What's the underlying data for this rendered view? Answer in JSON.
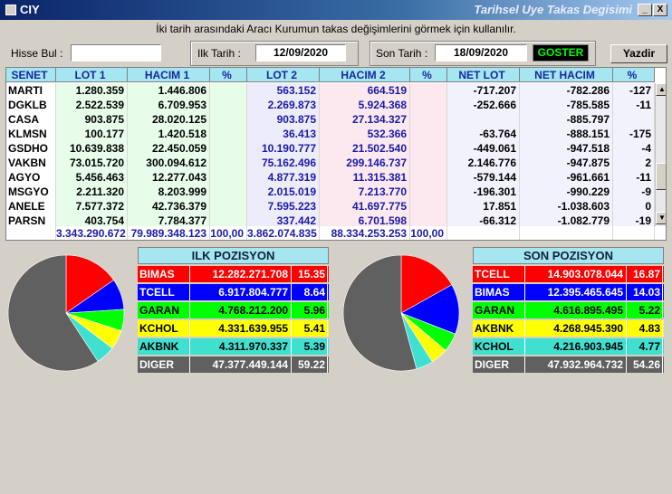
{
  "window": {
    "title_left": "CIY",
    "title_right": "Tarihsel Uye Takas Degisimi",
    "min_label": "_",
    "close_label": "X"
  },
  "instructions": "İki tarih arasındaki Aracı Kurumun takas değişimlerini görmek için kullanılır.",
  "filters": {
    "hisse_label": "Hisse Bul :",
    "hisse_value": "",
    "ilk_label": "Ilk Tarih :",
    "ilk_value": "12/09/2020",
    "son_label": "Son Tarih :",
    "son_value": "18/09/2020",
    "goster_label": "GOSTER",
    "yazdir_label": "Yazdir"
  },
  "table": {
    "headers": [
      "SENET",
      "LOT 1",
      "HACIM 1",
      "%",
      "LOT 2",
      "HACIM 2",
      "%",
      "NET LOT",
      "NET HACIM",
      "%"
    ],
    "rows": [
      [
        "MARTI",
        "1.280.359",
        "1.446.806",
        "",
        "563.152",
        "664.519",
        "",
        "-717.207",
        "-782.286",
        "-127"
      ],
      [
        "DGKLB",
        "2.522.539",
        "6.709.953",
        "",
        "2.269.873",
        "5.924.368",
        "",
        "-252.666",
        "-785.585",
        "-11"
      ],
      [
        "CASA",
        "903.875",
        "28.020.125",
        "",
        "903.875",
        "27.134.327",
        "",
        "",
        "-885.797",
        ""
      ],
      [
        "KLMSN",
        "100.177",
        "1.420.518",
        "",
        "36.413",
        "532.366",
        "",
        "-63.764",
        "-888.151",
        "-175"
      ],
      [
        "GSDHO",
        "10.639.838",
        "22.450.059",
        "",
        "10.190.777",
        "21.502.540",
        "",
        "-449.061",
        "-947.518",
        "-4"
      ],
      [
        "VAKBN",
        "73.015.720",
        "300.094.612",
        "",
        "75.162.496",
        "299.146.737",
        "",
        "2.146.776",
        "-947.875",
        "2"
      ],
      [
        "AGYO",
        "5.456.463",
        "12.277.043",
        "",
        "4.877.319",
        "11.315.381",
        "",
        "-579.144",
        "-961.661",
        "-11"
      ],
      [
        "MSGYO",
        "2.211.320",
        "8.203.999",
        "",
        "2.015.019",
        "7.213.770",
        "",
        "-196.301",
        "-990.229",
        "-9"
      ],
      [
        "ANELE",
        "7.577.372",
        "42.736.379",
        "",
        "7.595.223",
        "41.697.775",
        "",
        "17.851",
        "-1.038.603",
        "0"
      ],
      [
        "PARSN",
        "403.754",
        "7.784.377",
        "",
        "337.442",
        "6.701.598",
        "",
        "-66.312",
        "-1.082.779",
        "-19"
      ]
    ],
    "totals": [
      "",
      "3.343.290.672",
      "79.989.348.123",
      "100,00",
      "3.862.074.835",
      "88.334.253.253",
      "100,00",
      "",
      "",
      ""
    ]
  },
  "ilk_pozisyon": {
    "title": "ILK POZISYON",
    "items": [
      {
        "name": "BIMAS",
        "value": "12.282.271.708",
        "pct": "15.35",
        "color": "#ff0000",
        "text": "#ffffff",
        "share": 15.35
      },
      {
        "name": "TCELL",
        "value": "6.917.804.777",
        "pct": "8.64",
        "color": "#0000ff",
        "text": "#ffffff",
        "share": 8.64
      },
      {
        "name": "GARAN",
        "value": "4.768.212.200",
        "pct": "5.96",
        "color": "#00ff00",
        "text": "#000000",
        "share": 5.96
      },
      {
        "name": "KCHOL",
        "value": "4.331.639.955",
        "pct": "5.41",
        "color": "#ffff00",
        "text": "#000000",
        "share": 5.41
      },
      {
        "name": "AKBNK",
        "value": "4.311.970.337",
        "pct": "5.39",
        "color": "#40e0d0",
        "text": "#000000",
        "share": 5.39
      },
      {
        "name": "DIGER",
        "value": "47.377.449.144",
        "pct": "59.22",
        "color": "#606060",
        "text": "#ffffff",
        "share": 59.22
      }
    ]
  },
  "son_pozisyon": {
    "title": "SON POZISYON",
    "items": [
      {
        "name": "TCELL",
        "value": "14.903.078.044",
        "pct": "16.87",
        "color": "#ff0000",
        "text": "#ffffff",
        "share": 16.87
      },
      {
        "name": "BIMAS",
        "value": "12.395.465.645",
        "pct": "14.03",
        "color": "#0000ff",
        "text": "#ffffff",
        "share": 14.03
      },
      {
        "name": "GARAN",
        "value": "4.616.895.495",
        "pct": "5.22",
        "color": "#00ff00",
        "text": "#000000",
        "share": 5.22
      },
      {
        "name": "AKBNK",
        "value": "4.268.945.390",
        "pct": "4.83",
        "color": "#ffff00",
        "text": "#000000",
        "share": 4.83
      },
      {
        "name": "KCHOL",
        "value": "4.216.903.945",
        "pct": "4.77",
        "color": "#40e0d0",
        "text": "#000000",
        "share": 4.77
      },
      {
        "name": "DIGER",
        "value": "47.932.964.732",
        "pct": "54.26",
        "color": "#606060",
        "text": "#ffffff",
        "share": 54.26
      }
    ]
  }
}
